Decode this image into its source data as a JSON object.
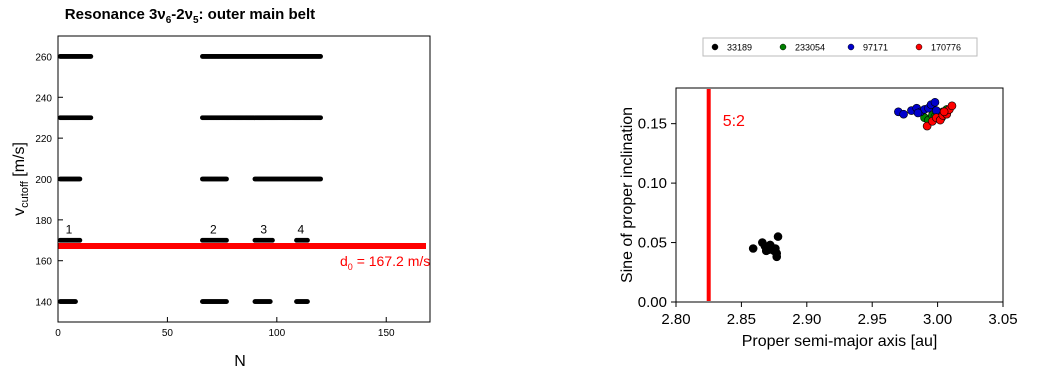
{
  "chart_data": [
    {
      "type": "scatter",
      "title_main": "Resonance 3ν",
      "title_sub1": "6",
      "title_mid": "-2ν",
      "title_sub2": "5",
      "title_end": ": outer main belt",
      "xlabel": "N",
      "ylabel_main": "v",
      "ylabel_sub": "cutoff",
      "ylabel_unit": " [m/s]",
      "xlim": [
        0,
        170
      ],
      "ylim": [
        130,
        270
      ],
      "xticks": [
        0,
        50,
        100,
        150
      ],
      "yticks": [
        140,
        160,
        180,
        200,
        220,
        240,
        260
      ],
      "grid": false,
      "bands": [
        {
          "y": 260,
          "ranges": [
            [
              1,
              15
            ],
            [
              66,
              120
            ]
          ]
        },
        {
          "y": 230,
          "ranges": [
            [
              1,
              15
            ],
            [
              66,
              120
            ]
          ]
        },
        {
          "y": 200,
          "ranges": [
            [
              1,
              10
            ],
            [
              66,
              77
            ],
            [
              90,
              120
            ]
          ]
        },
        {
          "y": 170,
          "ranges": [
            [
              1,
              10
            ],
            [
              66,
              77
            ],
            [
              90,
              98
            ],
            [
              109,
              114
            ]
          ]
        },
        {
          "y": 140,
          "ranges": [
            [
              1,
              8
            ],
            [
              66,
              77
            ],
            [
              90,
              97
            ],
            [
              109,
              114
            ]
          ]
        }
      ],
      "group_labels": [
        {
          "text": "1",
          "x": 5
        },
        {
          "text": "2",
          "x": 71
        },
        {
          "text": "3",
          "x": 94
        },
        {
          "text": "4",
          "x": 111
        }
      ],
      "threshold": {
        "y": 167.2,
        "label_main": "d",
        "label_sub": "0",
        "label_rest": " = 167.2 m/s",
        "color": "#ff0000"
      }
    },
    {
      "type": "scatter",
      "xlabel": "Proper semi-major axis [au]",
      "ylabel": "Sine of proper inclination",
      "xlim": [
        2.8,
        3.05
      ],
      "ylim": [
        0.0,
        0.18
      ],
      "xticks": [
        "2.80",
        "2.85",
        "2.90",
        "2.95",
        "3.00",
        "3.05"
      ],
      "yticks": [
        "0.00",
        "0.05",
        "0.10",
        "0.15"
      ],
      "grid": false,
      "legend_position": "top",
      "resonance_line": {
        "x": 2.825,
        "label": "5:2",
        "color": "#ff0000"
      },
      "series": [
        {
          "name": "33189",
          "color": "#000000",
          "points": [
            [
              2.859,
              0.045
            ],
            [
              2.866,
              0.05
            ],
            [
              2.868,
              0.047
            ],
            [
              2.871,
              0.044
            ],
            [
              2.873,
              0.046
            ],
            [
              2.875,
              0.043
            ],
            [
              2.876,
              0.045
            ],
            [
              2.877,
              0.041
            ],
            [
              2.877,
              0.038
            ],
            [
              2.878,
              0.055
            ],
            [
              2.872,
              0.048
            ],
            [
              2.869,
              0.043
            ]
          ]
        },
        {
          "name": "233054",
          "color": "#008000",
          "points": [
            [
              2.99,
              0.155
            ],
            [
              2.993,
              0.153
            ],
            [
              2.996,
              0.157
            ],
            [
              2.998,
              0.156
            ],
            [
              3.001,
              0.158
            ],
            [
              3.004,
              0.16
            ],
            [
              3.007,
              0.162
            ],
            [
              3.003,
              0.155
            ]
          ]
        },
        {
          "name": "97171",
          "color": "#0000cc",
          "points": [
            [
              2.97,
              0.16
            ],
            [
              2.974,
              0.158
            ],
            [
              2.98,
              0.161
            ],
            [
              2.984,
              0.163
            ],
            [
              2.987,
              0.16
            ],
            [
              2.99,
              0.162
            ],
            [
              2.993,
              0.163
            ],
            [
              2.995,
              0.166
            ],
            [
              2.998,
              0.168
            ],
            [
              2.999,
              0.161
            ],
            [
              2.985,
              0.159
            ]
          ]
        },
        {
          "name": "170776",
          "color": "#ff0000",
          "points": [
            [
              2.992,
              0.148
            ],
            [
              2.996,
              0.152
            ],
            [
              2.999,
              0.155
            ],
            [
              3.002,
              0.153
            ],
            [
              3.004,
              0.157
            ],
            [
              3.007,
              0.158
            ],
            [
              3.009,
              0.162
            ],
            [
              3.011,
              0.165
            ],
            [
              3.005,
              0.16
            ]
          ]
        }
      ]
    }
  ]
}
